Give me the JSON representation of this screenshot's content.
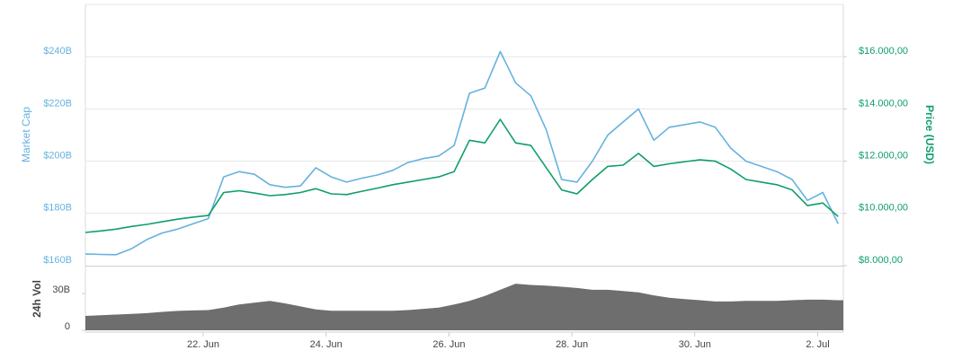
{
  "chart_data": [
    {
      "type": "line",
      "ylabel": "Market Cap",
      "y2label": "Price (USD)",
      "x": [
        "06-20 02:00",
        "06-20 08:00",
        "06-20 14:00",
        "06-20 20:00",
        "06-21 02:00",
        "06-21 08:00",
        "06-21 14:00",
        "06-21 20:00",
        "06-22 02:00",
        "06-22 08:00",
        "06-22 14:00",
        "06-22 20:00",
        "06-23 02:00",
        "06-23 08:00",
        "06-23 14:00",
        "06-23 20:00",
        "06-24 02:00",
        "06-24 08:00",
        "06-24 14:00",
        "06-24 20:00",
        "06-25 02:00",
        "06-25 08:00",
        "06-25 14:00",
        "06-25 20:00",
        "06-26 02:00",
        "06-26 08:00",
        "06-26 14:00",
        "06-26 20:00",
        "06-27 02:00",
        "06-27 08:00",
        "06-27 14:00",
        "06-27 20:00",
        "06-28 02:00",
        "06-28 08:00",
        "06-28 14:00",
        "06-28 20:00",
        "06-29 02:00",
        "06-29 08:00",
        "06-29 14:00",
        "06-29 20:00",
        "06-30 02:00",
        "06-30 08:00",
        "06-30 14:00",
        "06-30 20:00",
        "07-01 02:00",
        "07-01 08:00",
        "07-01 14:00",
        "07-01 20:00",
        "07-02 02:00",
        "07-02 08:00"
      ],
      "xlim": [
        "06-20 02:00",
        "07-02 10:00"
      ],
      "series": [
        {
          "name": "Market Cap",
          "color": "#65b2e0",
          "axis": "y",
          "values": [
            164.5,
            164.3,
            164.2,
            166.5,
            170,
            172.5,
            174,
            176,
            178,
            194,
            196,
            195,
            191,
            190,
            190.5,
            197.5,
            194,
            192,
            193.5,
            194.7,
            196.5,
            199.5,
            201,
            202,
            206,
            226,
            228,
            242,
            230,
            225,
            212,
            193,
            192,
            200,
            210,
            215,
            220,
            208,
            213,
            214,
            215,
            213,
            205,
            200,
            198,
            196,
            193,
            185,
            188,
            176
          ]
        },
        {
          "name": "Price (USD)",
          "color": "#0f9e6c",
          "axis": "y2",
          "values": [
            9270,
            9330,
            9400,
            9500,
            9580,
            9680,
            9780,
            9860,
            9920,
            10800,
            10870,
            10780,
            10680,
            10720,
            10800,
            10950,
            10750,
            10720,
            10850,
            10970,
            11100,
            11200,
            11300,
            11400,
            11600,
            12800,
            12700,
            13600,
            12700,
            12600,
            11750,
            10900,
            10750,
            11300,
            11800,
            11850,
            12300,
            11800,
            11900,
            11980,
            12050,
            12000,
            11700,
            11300,
            11200,
            11100,
            10900,
            10300,
            10400,
            9880
          ]
        }
      ],
      "ylim": [
        160,
        260
      ],
      "yticks": [
        {
          "value": 160,
          "label": "$160B"
        },
        {
          "value": 180,
          "label": "$180B"
        },
        {
          "value": 200,
          "label": "$200B"
        },
        {
          "value": 220,
          "label": "$220B"
        },
        {
          "value": 240,
          "label": "$240B"
        }
      ],
      "y2lim": [
        8000,
        18000
      ],
      "y2ticks": [
        {
          "value": 8000,
          "label": "$8.000,00"
        },
        {
          "value": 10000,
          "label": "$10.000,00"
        },
        {
          "value": 12000,
          "label": "$12.000,00"
        },
        {
          "value": 14000,
          "label": "$14.000,00"
        },
        {
          "value": 16000,
          "label": "$16.000,00"
        }
      ],
      "grid": true
    },
    {
      "type": "area",
      "ylabel": "24h Vol",
      "x": [
        "06-20 02:00",
        "06-20 08:00",
        "06-20 14:00",
        "06-20 20:00",
        "06-21 02:00",
        "06-21 08:00",
        "06-21 14:00",
        "06-21 20:00",
        "06-22 02:00",
        "06-22 08:00",
        "06-22 14:00",
        "06-22 20:00",
        "06-23 02:00",
        "06-23 08:00",
        "06-23 14:00",
        "06-23 20:00",
        "06-24 02:00",
        "06-24 08:00",
        "06-24 14:00",
        "06-24 20:00",
        "06-25 02:00",
        "06-25 08:00",
        "06-25 14:00",
        "06-25 20:00",
        "06-26 02:00",
        "06-26 08:00",
        "06-26 14:00",
        "06-26 20:00",
        "06-27 02:00",
        "06-27 08:00",
        "06-27 14:00",
        "06-27 20:00",
        "06-28 02:00",
        "06-28 08:00",
        "06-28 14:00",
        "06-28 20:00",
        "06-29 02:00",
        "06-29 08:00",
        "06-29 14:00",
        "06-29 20:00",
        "06-30 02:00",
        "06-30 08:00",
        "06-30 14:00",
        "06-30 20:00",
        "07-01 02:00",
        "07-01 08:00",
        "07-01 14:00",
        "07-01 20:00",
        "07-02 02:00",
        "07-02 08:00"
      ],
      "xlim": [
        "06-20 02:00",
        "07-02 10:00"
      ],
      "xticks": [
        {
          "value": "06-22 00:00",
          "label": "22. Jun"
        },
        {
          "value": "06-24 00:00",
          "label": "24. Jun"
        },
        {
          "value": "06-26 00:00",
          "label": "26. Jun"
        },
        {
          "value": "06-28 00:00",
          "label": "28. Jun"
        },
        {
          "value": "06-30 00:00",
          "label": "30. Jun"
        },
        {
          "value": "07-02 00:00",
          "label": "2. Jul"
        }
      ],
      "color": "#6e6e6e",
      "values": [
        11.7,
        12.2,
        12.8,
        13.3,
        14,
        15,
        15.8,
        16.2,
        16.5,
        18.5,
        21,
        22.5,
        24,
        22,
        19.5,
        17,
        16,
        16,
        16,
        16,
        16,
        16.5,
        17.5,
        18.5,
        21,
        24,
        28,
        33,
        38,
        37,
        36.5,
        35.5,
        34.5,
        33,
        33,
        32,
        31,
        28.5,
        26.5,
        25.5,
        24.5,
        23.5,
        23.5,
        24,
        24,
        24,
        24.5,
        25,
        25,
        24.5
      ],
      "ylim": [
        0,
        52
      ],
      "yticks": [
        0,
        {
          "value": 30,
          "label": "30B"
        }
      ]
    }
  ]
}
